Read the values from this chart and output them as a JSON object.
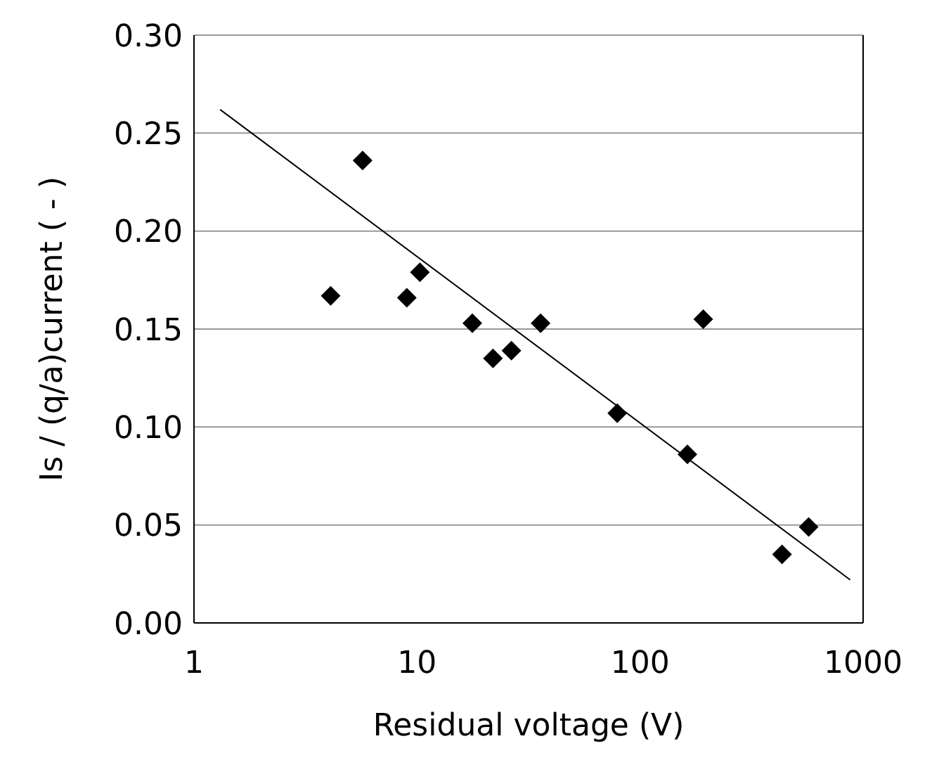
{
  "chart_data": {
    "type": "scatter",
    "xlabel": "Residual voltage (V)",
    "ylabel": "Is / (q/a)current  ( - )",
    "log": "x",
    "xlim": [
      1,
      1000
    ],
    "xticks": [
      1,
      10,
      100,
      1000
    ],
    "ylim": [
      0,
      0.3
    ],
    "yticks": [
      {
        "value": 0,
        "label": "0.00"
      },
      0.05,
      {
        "value": 0.1,
        "label": "0.10"
      },
      0.15,
      {
        "value": 0.2,
        "label": "0.20"
      },
      0.25,
      {
        "value": 0.3,
        "label": "0.30"
      }
    ],
    "grid": "y",
    "marker": "diamond",
    "series": [
      {
        "color": "#000000",
        "x": [
          4.1,
          5.7,
          9.0,
          10.3,
          17.7,
          21.9,
          26.5,
          35.8,
          79,
          163,
          192,
          433,
          570
        ],
        "values": [
          0.167,
          0.236,
          0.166,
          0.179,
          0.153,
          0.135,
          0.139,
          0.153,
          0.107,
          0.086,
          0.155,
          0.035,
          0.049
        ]
      },
      {
        "type": "line",
        "color": "#000000",
        "marker": "none",
        "x": [
          1.31,
          875
        ],
        "values": [
          0.262,
          0.022
        ]
      }
    ]
  }
}
